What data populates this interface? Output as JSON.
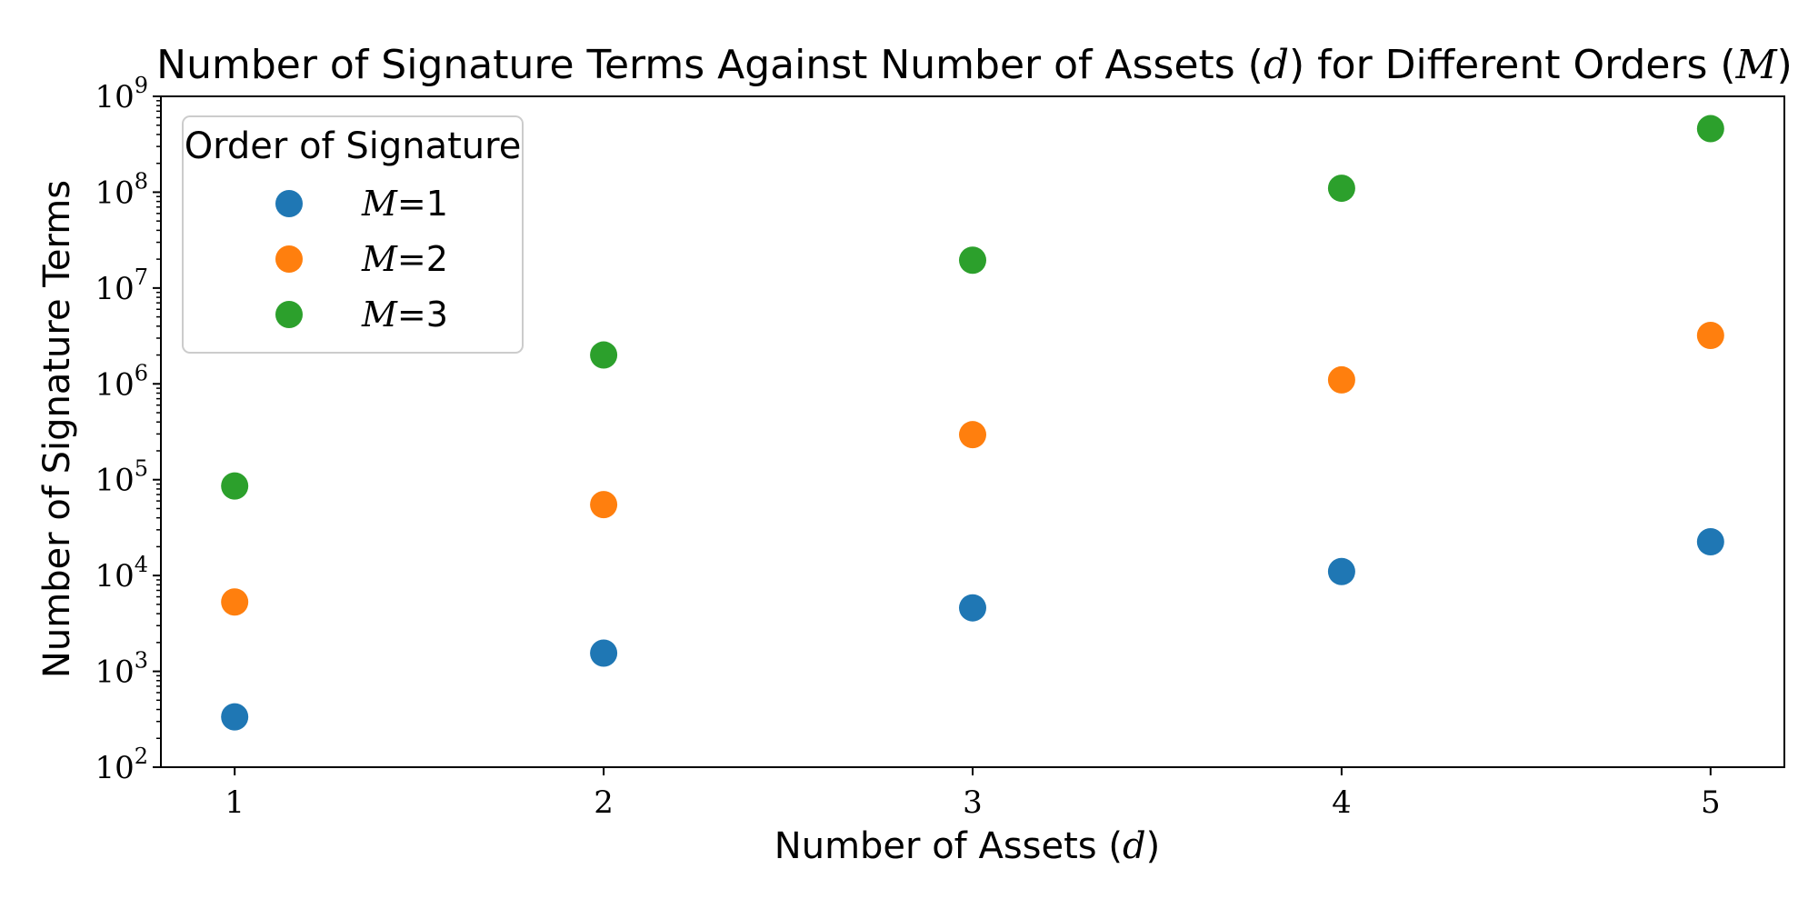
{
  "chart_data": {
    "type": "scatter",
    "title_prefix": "Number of Signature Terms Against Number of Assets (",
    "title_var1": "d",
    "title_mid": ") for Different Orders (",
    "title_var2": "M",
    "title_suffix": ")",
    "xlabel_prefix": "Number of Assets (",
    "xlabel_var": "d",
    "xlabel_suffix": ")",
    "ylabel": "Number of Signature Terms",
    "y_scale": "log",
    "xlim": [
      0.8,
      5.2
    ],
    "ylim": [
      100,
      1000000000
    ],
    "x_ticks": [
      1,
      2,
      3,
      4,
      5
    ],
    "y_tick_exponents": [
      2,
      3,
      4,
      5,
      6,
      7,
      8,
      9
    ],
    "y_tick_base": "10",
    "grid": false,
    "legend": {
      "title": "Order of Signature",
      "placement": "top-left",
      "var": "M",
      "eq": "="
    },
    "x": [
      1,
      2,
      3,
      4,
      5
    ],
    "series": [
      {
        "name": "1",
        "color": "#1f77b4",
        "values": [
          335,
          1550,
          4600,
          11000,
          22500
        ]
      },
      {
        "name": "2",
        "color": "#ff7f0e",
        "values": [
          5300,
          55000,
          295000,
          1100000,
          3200000
        ]
      },
      {
        "name": "3",
        "color": "#2ca02c",
        "values": [
          86000,
          2000000,
          19500000,
          110000000,
          460000000
        ]
      }
    ]
  }
}
